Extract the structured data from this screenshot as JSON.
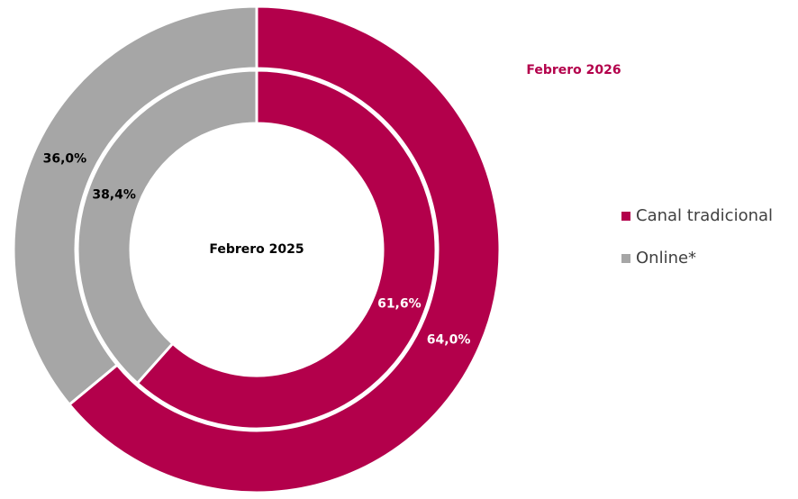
{
  "chart_data": {
    "type": "donut",
    "categories": [
      "Canal tradicional",
      "Online*"
    ],
    "colors": [
      "#b3004b",
      "#a6a6a6"
    ],
    "rings": [
      {
        "name": "Febrero 2026",
        "values": [
          64.0,
          36.0
        ],
        "value_labels": [
          "64,0%",
          "36,0%"
        ]
      },
      {
        "name": "Febrero 2025",
        "values": [
          61.6,
          38.4
        ],
        "value_labels": [
          "61,6%",
          "38,4%"
        ]
      }
    ]
  }
}
